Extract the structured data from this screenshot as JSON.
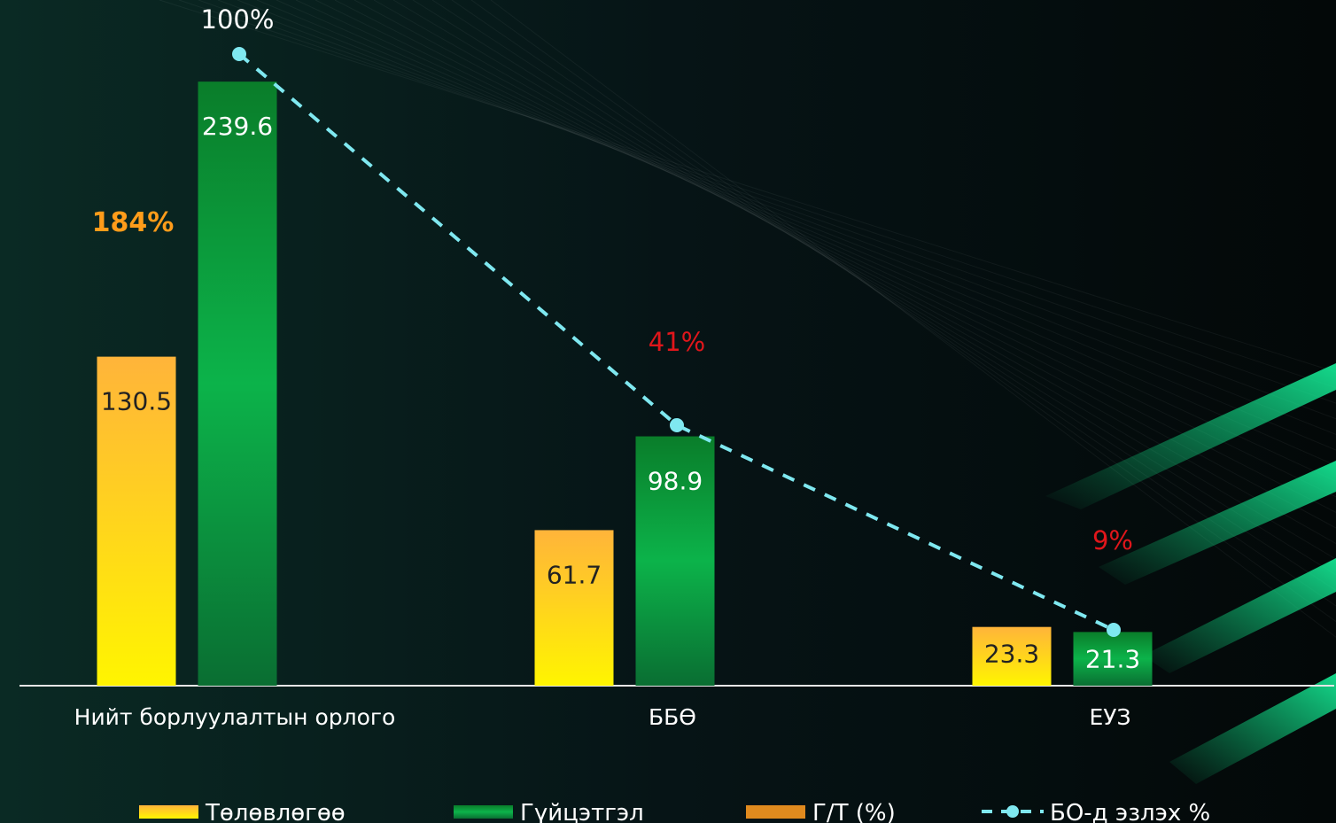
{
  "chart_data": {
    "type": "bar",
    "categories": [
      "Нийт борлуулалтын орлого",
      "ББӨ",
      "ЕУЗ"
    ],
    "series": [
      {
        "name": "Төлөвлөгөө",
        "values": [
          130.5,
          61.7,
          23.3
        ],
        "color": "#ffc23a"
      },
      {
        "name": "Гүйцэтгэл",
        "values": [
          239.6,
          98.9,
          21.3
        ],
        "color": "#0aa84a"
      }
    ],
    "ratio_series": {
      "name": "Г/Т (%)",
      "labels": [
        "184%"
      ],
      "color": "#e08a1e"
    },
    "share_series": {
      "name": "БО-д эзлэх %",
      "values": [
        100,
        41,
        9
      ],
      "labels": [
        "100%",
        "41%",
        "9%"
      ],
      "color": "#7fe8f0"
    },
    "label_colors": {
      "share_first": "#ffffff",
      "share_other": "#e0161b",
      "ratio": "#ff9c1a"
    },
    "ylim": [
      0,
      240
    ],
    "grid": false,
    "legend": "bottom",
    "background": "#050f10"
  }
}
